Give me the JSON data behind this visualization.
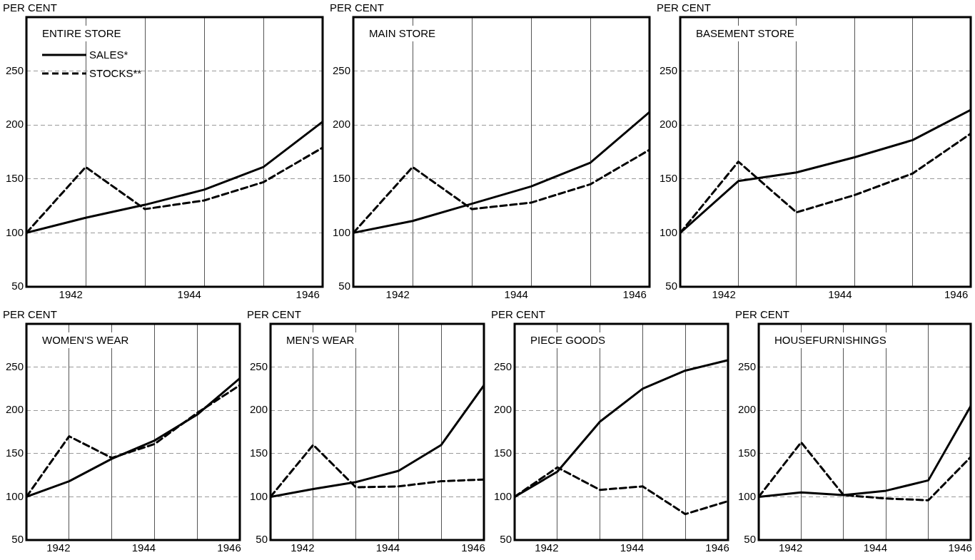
{
  "chart_data": [
    {
      "type": "line",
      "title": "ENTIRE STORE",
      "ylabel": "PER CENT",
      "x": [
        1941,
        1942,
        1943,
        1944,
        1945,
        1946
      ],
      "xlim": [
        1941,
        1946
      ],
      "xticks": [
        {
          "value": 1941.75,
          "label": "1942"
        },
        {
          "value": 1942,
          "label": null
        },
        {
          "value": 1943,
          "label": null
        },
        {
          "value": 1943.75,
          "label": "1944"
        },
        {
          "value": 1944,
          "label": null
        },
        {
          "value": 1945,
          "label": null
        },
        {
          "value": 1945.75,
          "label": "1946"
        }
      ],
      "ylim": [
        50,
        300
      ],
      "yticks": [
        50,
        100,
        150,
        200,
        250
      ],
      "grid": true,
      "legend": "top left",
      "marker": "none",
      "series": [
        {
          "name": "SALES*",
          "color": "#000000",
          "line_style": "solid",
          "values": [
            100,
            114,
            126,
            140,
            161,
            203
          ]
        },
        {
          "name": "STOCKS**",
          "color": "#000000",
          "line_style": "dashed",
          "values": [
            100,
            161,
            122,
            130,
            147,
            179
          ]
        }
      ]
    },
    {
      "type": "line",
      "title": "MAIN STORE",
      "ylabel": "PER CENT",
      "x": [
        1941,
        1942,
        1943,
        1944,
        1945,
        1946
      ],
      "xlim": [
        1941,
        1946
      ],
      "xticks": [
        {
          "value": 1941.75,
          "label": "1942"
        },
        {
          "value": 1942,
          "label": null
        },
        {
          "value": 1943,
          "label": null
        },
        {
          "value": 1943.75,
          "label": "1944"
        },
        {
          "value": 1944,
          "label": null
        },
        {
          "value": 1945,
          "label": null
        },
        {
          "value": 1945.75,
          "label": "1946"
        }
      ],
      "ylim": [
        50,
        300
      ],
      "yticks": [
        50,
        100,
        150,
        200,
        250
      ],
      "grid": true,
      "marker": "none",
      "series": [
        {
          "color": "#000000",
          "line_style": "solid",
          "values": [
            100,
            111,
            127,
            143,
            165,
            212
          ]
        },
        {
          "color": "#000000",
          "line_style": "dashed",
          "values": [
            100,
            161,
            122,
            128,
            145,
            177
          ]
        }
      ]
    },
    {
      "type": "line",
      "title": "BASEMENT STORE",
      "ylabel": "PER CENT",
      "x": [
        1941,
        1942,
        1943,
        1944,
        1945,
        1946
      ],
      "xlim": [
        1941,
        1946
      ],
      "xticks": [
        {
          "value": 1941.75,
          "label": "1942"
        },
        {
          "value": 1942,
          "label": null
        },
        {
          "value": 1943,
          "label": null
        },
        {
          "value": 1943.75,
          "label": "1944"
        },
        {
          "value": 1944,
          "label": null
        },
        {
          "value": 1945,
          "label": null
        },
        {
          "value": 1945.75,
          "label": "1946"
        }
      ],
      "ylim": [
        50,
        300
      ],
      "yticks": [
        50,
        100,
        150,
        200,
        250
      ],
      "grid": true,
      "marker": "none",
      "series": [
        {
          "color": "#000000",
          "line_style": "solid",
          "values": [
            100,
            148,
            156,
            170,
            186,
            214
          ]
        },
        {
          "color": "#000000",
          "line_style": "dashed",
          "values": [
            100,
            166,
            119,
            135,
            155,
            192
          ]
        }
      ]
    },
    {
      "type": "line",
      "title": "WOMEN'S WEAR",
      "ylabel": "PER CENT",
      "x": [
        1941,
        1942,
        1943,
        1944,
        1945,
        1946
      ],
      "xlim": [
        1941,
        1946
      ],
      "xticks": [
        {
          "value": 1941.75,
          "label": "1942"
        },
        {
          "value": 1942,
          "label": null
        },
        {
          "value": 1943,
          "label": null
        },
        {
          "value": 1943.75,
          "label": "1944"
        },
        {
          "value": 1944,
          "label": null
        },
        {
          "value": 1945,
          "label": null
        },
        {
          "value": 1945.75,
          "label": "1946"
        }
      ],
      "ylim": [
        50,
        300
      ],
      "yticks": [
        50,
        100,
        150,
        200,
        250
      ],
      "grid": true,
      "marker": "none",
      "series": [
        {
          "color": "#000000",
          "line_style": "solid",
          "values": [
            100,
            118,
            144,
            165,
            195,
            237
          ]
        },
        {
          "color": "#000000",
          "line_style": "dashed",
          "values": [
            100,
            170,
            145,
            161,
            197,
            229
          ]
        }
      ]
    },
    {
      "type": "line",
      "title": "MEN'S WEAR",
      "ylabel": "PER CENT",
      "x": [
        1941,
        1942,
        1943,
        1944,
        1945,
        1946
      ],
      "xlim": [
        1941,
        1946
      ],
      "xticks": [
        {
          "value": 1941.75,
          "label": "1942"
        },
        {
          "value": 1942,
          "label": null
        },
        {
          "value": 1943,
          "label": null
        },
        {
          "value": 1943.75,
          "label": "1944"
        },
        {
          "value": 1944,
          "label": null
        },
        {
          "value": 1945,
          "label": null
        },
        {
          "value": 1945.75,
          "label": "1946"
        }
      ],
      "ylim": [
        50,
        300
      ],
      "yticks": [
        50,
        100,
        150,
        200,
        250
      ],
      "grid": true,
      "marker": "none",
      "series": [
        {
          "color": "#000000",
          "line_style": "solid",
          "values": [
            100,
            109,
            117,
            130,
            160,
            229
          ]
        },
        {
          "color": "#000000",
          "line_style": "dashed",
          "values": [
            100,
            160,
            111,
            112,
            118,
            120
          ]
        }
      ]
    },
    {
      "type": "line",
      "title": "PIECE GOODS",
      "ylabel": "PER CENT",
      "x": [
        1941,
        1942,
        1943,
        1944,
        1945,
        1946
      ],
      "xlim": [
        1941,
        1946
      ],
      "xticks": [
        {
          "value": 1941.75,
          "label": "1942"
        },
        {
          "value": 1942,
          "label": null
        },
        {
          "value": 1943,
          "label": null
        },
        {
          "value": 1943.75,
          "label": "1944"
        },
        {
          "value": 1944,
          "label": null
        },
        {
          "value": 1945,
          "label": null
        },
        {
          "value": 1945.75,
          "label": "1946"
        }
      ],
      "ylim": [
        50,
        300
      ],
      "yticks": [
        50,
        100,
        150,
        200,
        250
      ],
      "grid": true,
      "marker": "none",
      "series": [
        {
          "color": "#000000",
          "line_style": "solid",
          "values": [
            100,
            129,
            187,
            225,
            246,
            258
          ]
        },
        {
          "color": "#000000",
          "line_style": "dashed",
          "values": [
            100,
            134,
            108,
            112,
            80,
            95
          ]
        }
      ]
    },
    {
      "type": "line",
      "title": "HOUSEFURNISHINGS",
      "ylabel": "PER CENT",
      "x": [
        1941,
        1942,
        1943,
        1944,
        1945,
        1946
      ],
      "xlim": [
        1941,
        1946
      ],
      "xticks": [
        {
          "value": 1941.75,
          "label": "1942"
        },
        {
          "value": 1942,
          "label": null
        },
        {
          "value": 1943,
          "label": null
        },
        {
          "value": 1943.75,
          "label": "1944"
        },
        {
          "value": 1944,
          "label": null
        },
        {
          "value": 1945,
          "label": null
        },
        {
          "value": 1945.75,
          "label": "1946"
        }
      ],
      "ylim": [
        50,
        300
      ],
      "yticks": [
        50,
        100,
        150,
        200,
        250
      ],
      "grid": true,
      "marker": "none",
      "series": [
        {
          "color": "#000000",
          "line_style": "solid",
          "values": [
            100,
            105,
            102,
            107,
            119,
            205
          ]
        },
        {
          "color": "#000000",
          "line_style": "dashed",
          "values": [
            100,
            163,
            102,
            98,
            96,
            146
          ]
        }
      ]
    }
  ]
}
